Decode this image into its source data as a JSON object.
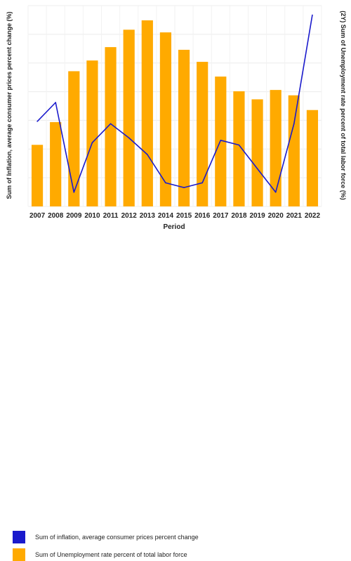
{
  "chart_data": {
    "type": "bar+line",
    "categories": [
      "2007",
      "2008",
      "2009",
      "2010",
      "2011",
      "2012",
      "2013",
      "2014",
      "2015",
      "2016",
      "2017",
      "2018",
      "2019",
      "2020",
      "2021",
      "2022"
    ],
    "xlabel": "Period",
    "ylabel_left": "Sum of Inflation, average consumer prices percent change (%)",
    "ylabel_right": "(2Y) Sum of Unemployment rate percent of total labor force (%)",
    "grid": true,
    "bar_series": {
      "name": "Sum of Unemployment rate percent of total labor force",
      "color": "#FFAA00",
      "values": [
        4.6,
        6.3,
        10.1,
        10.9,
        11.9,
        13.2,
        13.9,
        13.0,
        11.7,
        10.8,
        9.7,
        8.6,
        8.0,
        8.7,
        8.3,
        7.2
      ],
      "ylim": [
        0,
        15.0
      ]
    },
    "line_series": {
      "name": "Sum of inflation, average consumer prices percent change",
      "color": "#1a1acc",
      "values": [
        3.6,
        4.4,
        0.6,
        2.7,
        3.5,
        2.9,
        2.2,
        1.0,
        0.8,
        1.0,
        2.8,
        2.6,
        1.6,
        0.6,
        3.5,
        8.1
      ],
      "ylim": [
        0,
        8.5
      ]
    },
    "legend_position": "bottom-left"
  }
}
